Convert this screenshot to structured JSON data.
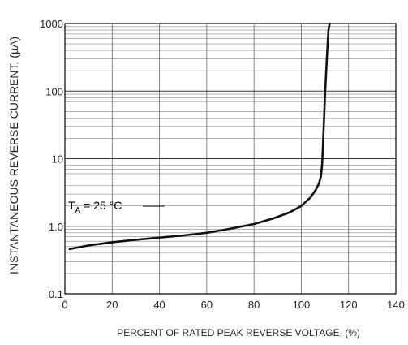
{
  "chart_data": {
    "type": "line",
    "title": "",
    "xlabel": "PERCENT OF RATED PEAK REVERSE VOLTAGE, (%)",
    "ylabel": "INSTANTANEOUS REVERSE CURRENT, (µA)",
    "xlim": [
      0,
      140
    ],
    "ylim": [
      0.1,
      1000
    ],
    "y_scale": "log",
    "grid": true,
    "x_ticks": [
      "0",
      "20",
      "40",
      "60",
      "80",
      "100",
      "120",
      "140"
    ],
    "y_ticks": [
      "0.1",
      "1.0",
      "10",
      "100",
      "1000"
    ],
    "annotation": {
      "label_main": "T",
      "label_sub": "A",
      "label_rest": " = 25 °C"
    },
    "series": [
      {
        "x": [
          2,
          10,
          20,
          30,
          40,
          50,
          60,
          70,
          80,
          88,
          95,
          100,
          104,
          106,
          107.5,
          108.3,
          108.8,
          109.3,
          110,
          110.8,
          111.5,
          112
        ],
        "y": [
          0.46,
          0.52,
          0.58,
          0.63,
          0.68,
          0.73,
          0.8,
          0.92,
          1.08,
          1.3,
          1.6,
          2.0,
          2.7,
          3.4,
          4.3,
          5.5,
          8,
          20,
          80,
          300,
          800,
          1000
        ]
      }
    ]
  }
}
